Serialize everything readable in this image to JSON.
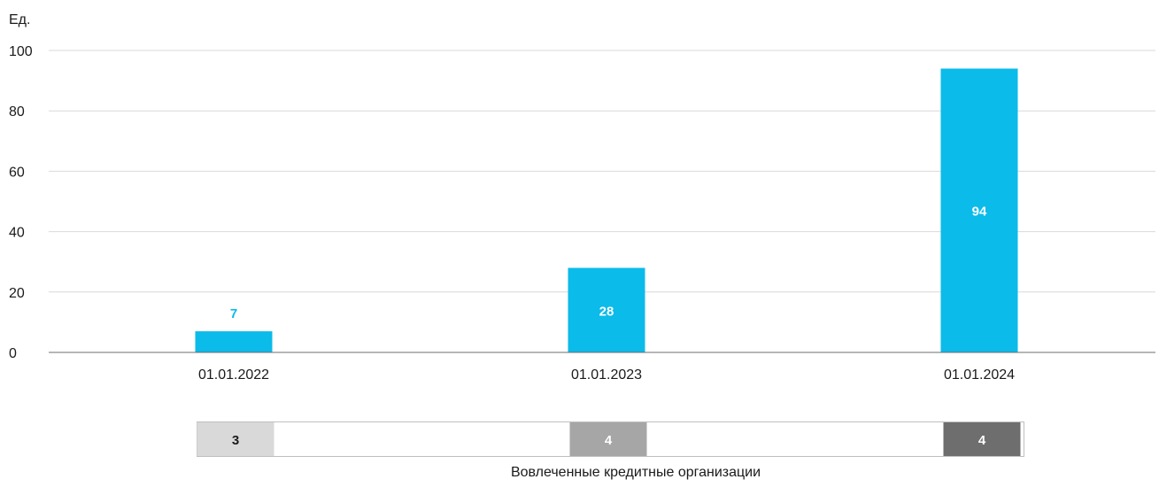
{
  "chart_data": {
    "type": "bar",
    "ylabel": "Ед.",
    "ylim": [
      0,
      100
    ],
    "yticks": [
      "0",
      "20",
      "40",
      "60",
      "80",
      "100"
    ],
    "grid": true,
    "categories": [
      "01.01.2022",
      "01.01.2023",
      "01.01.2024"
    ],
    "series": [
      {
        "values": [
          7,
          28,
          94
        ],
        "data_labels": [
          "7",
          "28",
          "94"
        ],
        "color": "#0bbbe9"
      }
    ],
    "secondary_table": {
      "label": "Вовлеченные кредитные организации",
      "values": [
        "3",
        "4",
        "4"
      ],
      "fill_colors": [
        "#d9d9d9",
        "#a6a6a6",
        "#6e6e6e"
      ],
      "text_colors": [
        "#1a1a1a",
        "#ffffff",
        "#ffffff"
      ]
    }
  },
  "colors": {
    "bar": "#0bbbe9",
    "grid": "#d9d9d9",
    "axis": "#6e6e6e",
    "label_outside": "#0bbbe9",
    "label_inside": "#ffffff"
  }
}
